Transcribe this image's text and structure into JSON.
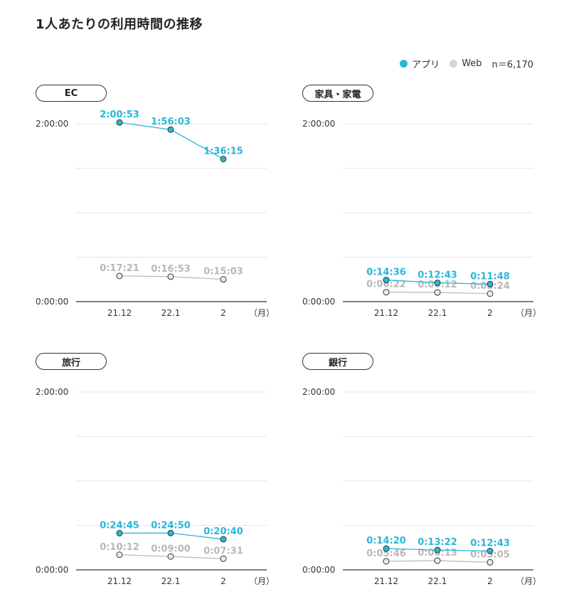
{
  "title": "1人あたりの利用時間の推移",
  "legend": {
    "app_label": "アプリ",
    "web_label": "Web",
    "n_label": "n＝6,170"
  },
  "colors": {
    "app": "#29b6d8",
    "web": "#d6d6d8",
    "web_text": "#b8b8b8",
    "grid": "#e6e6e6",
    "axis": "#333333"
  },
  "chart_data": [
    {
      "type": "line",
      "title": "EC",
      "categories": [
        "21.12",
        "22.1",
        "2"
      ],
      "x_unit": "（月）",
      "yticks": [
        "2:00:00",
        "0:00:00"
      ],
      "ylim": [
        "0:00:00",
        "2:00:00"
      ],
      "series": [
        {
          "name": "アプリ",
          "values": [
            "2:00:53",
            "1:56:03",
            "1:36:15"
          ]
        },
        {
          "name": "Web",
          "values": [
            "0:17:21",
            "0:16:53",
            "0:15:03"
          ]
        }
      ]
    },
    {
      "type": "line",
      "title": "家具・家電",
      "categories": [
        "21.12",
        "22.1",
        "2"
      ],
      "x_unit": "（月）",
      "yticks": [
        "2:00:00",
        "0:00:00"
      ],
      "ylim": [
        "0:00:00",
        "2:00:00"
      ],
      "series": [
        {
          "name": "アプリ",
          "values": [
            "0:14:36",
            "0:12:43",
            "0:11:48"
          ]
        },
        {
          "name": "Web",
          "values": [
            "0:06:22",
            "0:06:12",
            "0:05:24"
          ]
        }
      ]
    },
    {
      "type": "line",
      "title": "旅行",
      "categories": [
        "21.12",
        "22.1",
        "2"
      ],
      "x_unit": "（月）",
      "yticks": [
        "2:00:00",
        "0:00:00"
      ],
      "ylim": [
        "0:00:00",
        "2:00:00"
      ],
      "series": [
        {
          "name": "アプリ",
          "values": [
            "0:24:45",
            "0:24:50",
            "0:20:40"
          ]
        },
        {
          "name": "Web",
          "values": [
            "0:10:12",
            "0:09:00",
            "0:07:31"
          ]
        }
      ]
    },
    {
      "type": "line",
      "title": "銀行",
      "categories": [
        "21.12",
        "22.1",
        "2"
      ],
      "x_unit": "（月）",
      "yticks": [
        "2:00:00",
        "0:00:00"
      ],
      "ylim": [
        "0:00:00",
        "2:00:00"
      ],
      "series": [
        {
          "name": "アプリ",
          "values": [
            "0:14:20",
            "0:13:22",
            "0:12:43"
          ]
        },
        {
          "name": "Web",
          "values": [
            "0:05:46",
            "0:06:13",
            "0:05:05"
          ]
        }
      ]
    }
  ]
}
